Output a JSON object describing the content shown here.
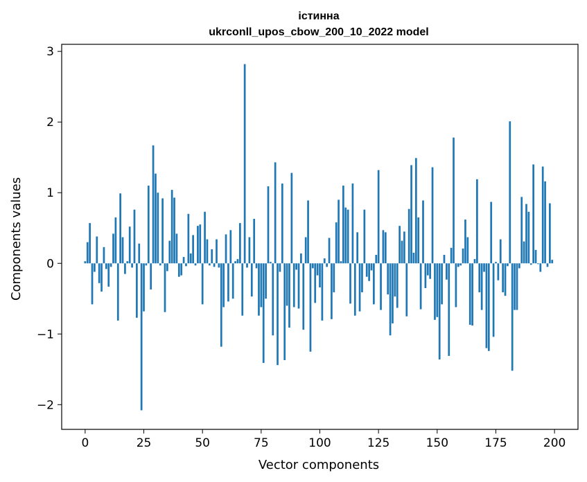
{
  "chart_data": {
    "type": "bar",
    "title_lines": [
      "істинна",
      "ukrconll_upos_cbow_200_10_2022 model"
    ],
    "xlabel": "Vector components",
    "ylabel": "Components values",
    "xlim": [
      -10,
      210
    ],
    "ylim": [
      -2.35,
      3.1
    ],
    "xticks": [
      0,
      25,
      50,
      75,
      100,
      125,
      150,
      175,
      200
    ],
    "yticks": [
      -2,
      -1,
      0,
      1,
      2,
      3
    ],
    "xtick_labels": [
      "0",
      "25",
      "50",
      "75",
      "100",
      "125",
      "150",
      "175",
      "200"
    ],
    "ytick_labels": [
      "−2",
      "−1",
      "0",
      "1",
      "2",
      "3"
    ],
    "grid": false,
    "bar_color": "#1f77b4",
    "x": [
      0,
      1,
      2,
      3,
      4,
      5,
      6,
      7,
      8,
      9,
      10,
      11,
      12,
      13,
      14,
      15,
      16,
      17,
      18,
      19,
      20,
      21,
      22,
      23,
      24,
      25,
      26,
      27,
      28,
      29,
      30,
      31,
      32,
      33,
      34,
      35,
      36,
      37,
      38,
      39,
      40,
      41,
      42,
      43,
      44,
      45,
      46,
      47,
      48,
      49,
      50,
      51,
      52,
      53,
      54,
      55,
      56,
      57,
      58,
      59,
      60,
      61,
      62,
      63,
      64,
      65,
      66,
      67,
      68,
      69,
      70,
      71,
      72,
      73,
      74,
      75,
      76,
      77,
      78,
      79,
      80,
      81,
      82,
      83,
      84,
      85,
      86,
      87,
      88,
      89,
      90,
      91,
      92,
      93,
      94,
      95,
      96,
      97,
      98,
      99,
      100,
      101,
      102,
      103,
      104,
      105,
      106,
      107,
      108,
      109,
      110,
      111,
      112,
      113,
      114,
      115,
      116,
      117,
      118,
      119,
      120,
      121,
      122,
      123,
      124,
      125,
      126,
      127,
      128,
      129,
      130,
      131,
      132,
      133,
      134,
      135,
      136,
      137,
      138,
      139,
      140,
      141,
      142,
      143,
      144,
      145,
      146,
      147,
      148,
      149,
      150,
      151,
      152,
      153,
      154,
      155,
      156,
      157,
      158,
      159,
      160,
      161,
      162,
      163,
      164,
      165,
      166,
      167,
      168,
      169,
      170,
      171,
      172,
      173,
      174,
      175,
      176,
      177,
      178,
      179,
      180,
      181,
      182,
      183,
      184,
      185,
      186,
      187,
      188,
      189,
      190,
      191,
      192,
      193,
      194,
      195,
      196,
      197,
      198,
      199
    ],
    "values": [
      0.03,
      0.3,
      0.57,
      -0.58,
      -0.12,
      0.38,
      -0.28,
      -0.4,
      0.23,
      -0.08,
      -0.33,
      -0.05,
      0.42,
      0.65,
      -0.81,
      0.99,
      0.37,
      -0.15,
      0.03,
      0.52,
      -0.06,
      0.76,
      -0.77,
      0.28,
      -2.08,
      -0.68,
      -0.03,
      1.1,
      -0.37,
      1.67,
      1.27,
      1.0,
      -0.03,
      0.92,
      -0.69,
      -0.11,
      0.32,
      1.04,
      0.93,
      0.42,
      -0.19,
      -0.17,
      0.09,
      -0.04,
      0.7,
      0.14,
      0.4,
      -0.03,
      0.53,
      0.55,
      -0.58,
      0.73,
      0.34,
      -0.03,
      0.2,
      -0.05,
      0.34,
      -0.06,
      -1.18,
      -0.62,
      0.41,
      -0.54,
      0.47,
      -0.5,
      0.03,
      0.06,
      0.57,
      -0.74,
      2.82,
      -0.06,
      0.37,
      -0.47,
      0.63,
      -0.07,
      -0.74,
      -0.62,
      -1.41,
      -0.5,
      1.09,
      0.02,
      -1.02,
      1.43,
      -1.44,
      -0.12,
      1.13,
      -1.37,
      -0.6,
      -0.91,
      1.28,
      -0.62,
      -0.09,
      -0.64,
      0.14,
      -0.94,
      0.37,
      0.89,
      -1.25,
      -0.07,
      -0.56,
      -0.17,
      -0.34,
      -0.81,
      0.07,
      -0.05,
      0.36,
      -0.79,
      -0.41,
      0.58,
      0.9,
      0.03,
      1.1,
      0.79,
      0.76,
      -0.57,
      1.13,
      -0.74,
      0.44,
      -0.68,
      -0.41,
      0.76,
      -0.19,
      -0.25,
      -0.1,
      -0.58,
      0.12,
      1.32,
      -0.66,
      0.47,
      0.44,
      -0.44,
      -1.02,
      -0.85,
      -0.47,
      -0.63,
      0.53,
      0.32,
      0.45,
      -0.75,
      0.77,
      1.39,
      0.15,
      1.49,
      0.65,
      -0.65,
      0.89,
      -0.35,
      -0.17,
      -0.22,
      1.36,
      -0.8,
      -0.76,
      -1.36,
      -0.58,
      0.12,
      -0.23,
      -1.31,
      0.22,
      1.78,
      -0.62,
      -0.05,
      -0.03,
      0.21,
      0.62,
      0.37,
      -0.87,
      -0.88,
      0.06,
      1.19,
      -0.41,
      -0.66,
      -0.12,
      -1.2,
      -1.24,
      0.87,
      -1.04,
      0.02,
      -0.24,
      0.34,
      -0.41,
      -0.46,
      -0.04,
      2.01,
      -1.52,
      -0.66,
      -0.66,
      -0.07,
      0.94,
      0.31,
      0.84,
      0.73,
      -0.02,
      1.4,
      0.19,
      -0.01,
      -0.12,
      1.37,
      1.16,
      -0.05,
      0.85,
      0.05
    ]
  }
}
